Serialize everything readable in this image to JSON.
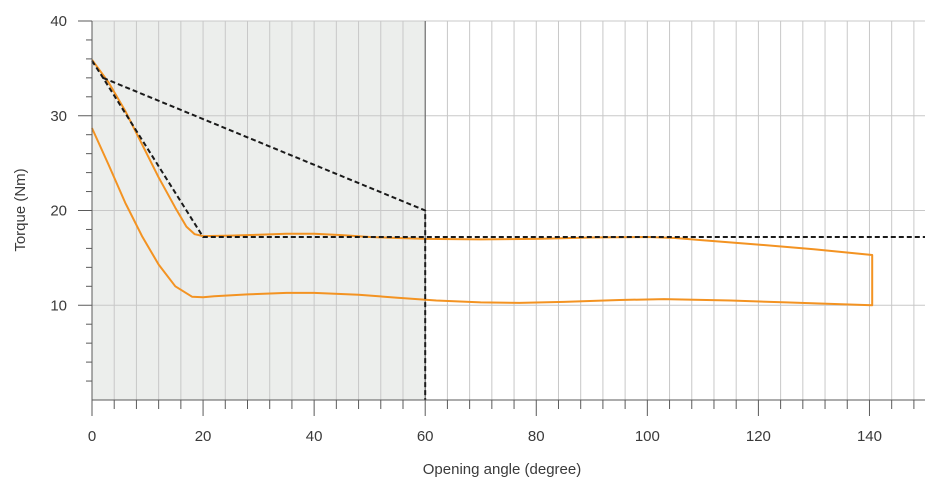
{
  "chart_data": {
    "type": "line",
    "title": "",
    "xlabel": "Opening angle (degree)",
    "ylabel": "Torque (Nm)",
    "xlim": [
      0,
      150
    ],
    "ylim": [
      0,
      40
    ],
    "x_ticks": [
      0,
      20,
      40,
      60,
      80,
      100,
      120,
      140
    ],
    "y_ticks": [
      10,
      20,
      30,
      40
    ],
    "x_minor_step": 4,
    "y_minor_step": 2,
    "grid": true,
    "shaded_region_x": [
      0,
      60
    ],
    "colors": {
      "curve": "#f39322",
      "limit": "#1a1a1a",
      "shade": "#eceeec",
      "grid": "#c8c8c8",
      "axis": "#5a5a5a",
      "text": "#3a3a3a"
    },
    "series": [
      {
        "style": "solid",
        "points": [
          [
            0,
            35.9
          ],
          [
            3,
            33.5
          ],
          [
            6,
            30.5
          ],
          [
            9,
            27.0
          ],
          [
            12,
            23.5
          ],
          [
            15,
            20.3
          ],
          [
            17,
            18.3
          ],
          [
            18.5,
            17.5
          ],
          [
            20,
            17.3
          ],
          [
            25,
            17.35
          ],
          [
            30,
            17.45
          ],
          [
            35,
            17.55
          ],
          [
            40,
            17.55
          ],
          [
            45,
            17.4
          ],
          [
            50,
            17.2
          ],
          [
            55,
            17.1
          ],
          [
            60,
            17.0
          ],
          [
            70,
            16.95
          ],
          [
            80,
            17.0
          ],
          [
            90,
            17.15
          ],
          [
            100,
            17.2
          ],
          [
            105,
            17.1
          ],
          [
            110,
            16.85
          ],
          [
            120,
            16.4
          ],
          [
            130,
            15.9
          ],
          [
            140.5,
            15.3
          ],
          [
            140.5,
            10.0
          ],
          [
            135,
            10.1
          ],
          [
            125,
            10.3
          ],
          [
            115,
            10.5
          ],
          [
            103,
            10.65
          ],
          [
            95,
            10.55
          ],
          [
            85,
            10.35
          ],
          [
            77,
            10.25
          ],
          [
            70,
            10.3
          ],
          [
            62,
            10.5
          ],
          [
            55,
            10.8
          ],
          [
            48,
            11.1
          ],
          [
            40,
            11.3
          ],
          [
            35,
            11.3
          ],
          [
            28,
            11.15
          ],
          [
            22,
            10.95
          ],
          [
            20,
            10.85
          ],
          [
            18,
            10.9
          ],
          [
            15,
            12.0
          ],
          [
            12,
            14.3
          ],
          [
            9,
            17.3
          ],
          [
            6,
            20.8
          ],
          [
            3,
            24.8
          ],
          [
            0,
            28.7
          ]
        ]
      },
      {
        "style": "dashed",
        "points": [
          [
            0,
            35.8
          ],
          [
            2,
            34.0
          ],
          [
            20,
            17.2
          ],
          [
            150,
            17.2
          ]
        ]
      },
      {
        "style": "dashed",
        "points": [
          [
            2,
            34.0
          ],
          [
            60,
            20.0
          ],
          [
            60,
            0
          ]
        ]
      }
    ]
  }
}
